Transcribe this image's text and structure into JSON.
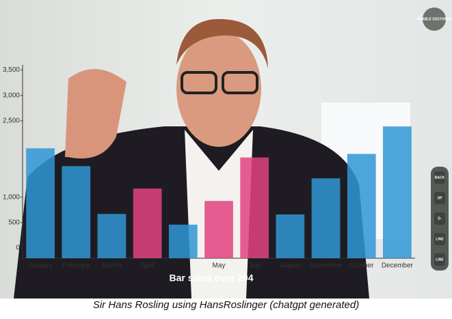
{
  "chart_data": {
    "type": "bar",
    "title": "Bar sales over 204",
    "categories": [
      "January",
      "February",
      "March",
      "April",
      null,
      "May",
      "July",
      "August",
      "September",
      "October",
      "December"
    ],
    "values": [
      1960,
      1610,
      670,
      1170,
      460,
      925,
      1780,
      660,
      1370,
      1850,
      2390
    ],
    "colors": [
      "#2f97d6",
      "#2f97d6",
      "#2f97d6",
      "#e2427f",
      "#2f97d6",
      "#e2427f",
      "#e2427f",
      "#2f97d6",
      "#2f97d6",
      "#2f97d6",
      "#2f97d6"
    ],
    "ylim": [
      -200,
      3600
    ],
    "yticks": [
      0,
      500,
      {
        "value": 1000,
        "label": "1,000"
      },
      {
        "value": 2500,
        "label": "2,500"
      },
      {
        "value": 3000,
        "label": "3,000"
      },
      {
        "value": 3500,
        "label": "3,500"
      }
    ],
    "grid": false
  },
  "ui": {
    "gesture_button": "ENABLE GESTURES",
    "buttons": [
      "BACK",
      "UP",
      "D-",
      "LINE",
      "LINE"
    ]
  },
  "caption": "Sir Hans Rosling using HansRoslinger (chatgpt generated)"
}
